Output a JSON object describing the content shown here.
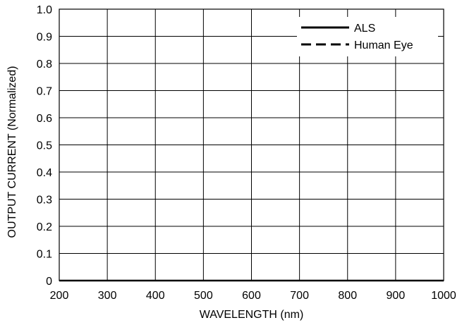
{
  "chart_data": {
    "type": "line",
    "xlabel": "WAVELENGTH (nm)",
    "ylabel": "OUTPUT CURRENT (Normalized)",
    "xlim": [
      200,
      1000
    ],
    "ylim": [
      0,
      1.0
    ],
    "x_ticks": [
      200,
      300,
      400,
      500,
      600,
      700,
      800,
      900,
      1000
    ],
    "x_tick_labels": [
      "200",
      "300",
      "400",
      "500",
      "600",
      "700",
      "800",
      "900",
      "1000"
    ],
    "y_ticks": [
      0,
      0.1,
      0.2,
      0.3,
      0.4,
      0.5,
      0.6,
      0.7,
      0.8,
      0.9,
      1.0
    ],
    "y_tick_labels": [
      "0",
      "0.1",
      "0.2",
      "0.3",
      "0.4",
      "0.5",
      "0.6",
      "0.7",
      "0.8",
      "0.9",
      "1.0"
    ],
    "grid": true,
    "legend_position": "top-right",
    "series": [
      {
        "name": "ALS",
        "line_style": "solid",
        "color": "#000000",
        "x": [],
        "y": []
      },
      {
        "name": "Human Eye",
        "line_style": "dashed",
        "color": "#000000",
        "x": [],
        "y": []
      }
    ]
  }
}
